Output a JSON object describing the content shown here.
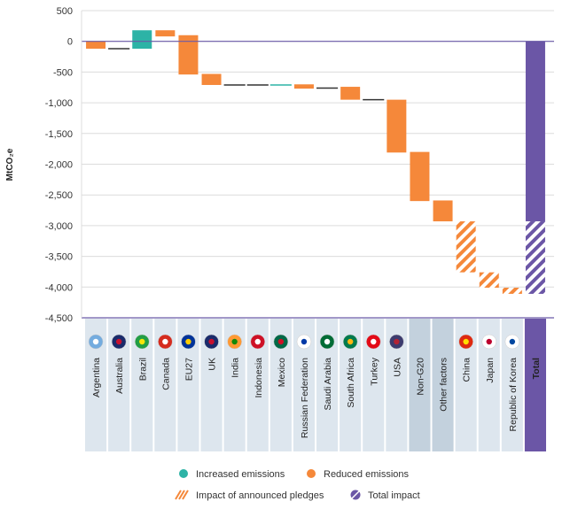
{
  "chart_data": {
    "type": "waterfall",
    "ylabel": "MtCO₂e",
    "ylim": [
      -4500,
      500
    ],
    "yticks": [
      500,
      0,
      -500,
      -1000,
      -1500,
      -2000,
      -2500,
      -3000,
      -3500,
      -4000,
      -4500
    ],
    "ytick_labels": [
      "500",
      "0",
      "-500",
      "-1,000",
      "-1,500",
      "-2,000",
      "-2,500",
      "-3,000",
      "-3,500",
      "-4,000",
      "-4,500"
    ],
    "grid": true,
    "legend_position": "bottom",
    "colors": {
      "increased": "#2db3a6",
      "reduced": "#f5883a",
      "pledges": "#f5883a",
      "total": "#6b56a6",
      "grid": "#dcdcdc",
      "axis": "#6a5aa8",
      "column": "#dde6ee",
      "column_dark": "#c3d1dd"
    },
    "categories": [
      {
        "name": "Argentina",
        "start": 0,
        "end": -120,
        "kind": "reduced"
      },
      {
        "name": "Australia",
        "start": -120,
        "end": -120,
        "kind": "line"
      },
      {
        "name": "Brazil",
        "start": -120,
        "end": 180,
        "kind": "increased"
      },
      {
        "name": "Canada",
        "start": 180,
        "end": 80,
        "kind": "reduced"
      },
      {
        "name": "EU27",
        "start": 100,
        "end": -540,
        "kind": "reduced"
      },
      {
        "name": "UK",
        "start": -530,
        "end": -710,
        "kind": "reduced"
      },
      {
        "name": "India",
        "start": -710,
        "end": -710,
        "kind": "line"
      },
      {
        "name": "Indonesia",
        "start": -710,
        "end": -710,
        "kind": "line"
      },
      {
        "name": "Mexico",
        "start": -710,
        "end": -710,
        "kind": "line-teal"
      },
      {
        "name": "Russian Federation",
        "start": -700,
        "end": -770,
        "kind": "reduced"
      },
      {
        "name": "Saudi Arabia",
        "start": -760,
        "end": -760,
        "kind": "line"
      },
      {
        "name": "South Africa",
        "start": -740,
        "end": -950,
        "kind": "reduced"
      },
      {
        "name": "Turkey",
        "start": -950,
        "end": -950,
        "kind": "line"
      },
      {
        "name": "USA",
        "start": -950,
        "end": -1810,
        "kind": "reduced"
      },
      {
        "name": "Non-G20",
        "start": -1800,
        "end": -2600,
        "kind": "reduced",
        "shade": true
      },
      {
        "name": "Other factors",
        "start": -2590,
        "end": -2930,
        "kind": "reduced",
        "shade": true
      },
      {
        "name": "China",
        "start": -2930,
        "end": -3760,
        "kind": "pledges"
      },
      {
        "name": "Japan",
        "start": -3760,
        "end": -4010,
        "kind": "pledges"
      },
      {
        "name": "Republic of Korea",
        "start": -4010,
        "end": -4110,
        "kind": "pledges"
      },
      {
        "name": "Total",
        "start": 0,
        "end": -4110,
        "kind": "total",
        "hatch_from": -2930,
        "bold": true
      }
    ],
    "legend": [
      {
        "label": "Increased emissions",
        "kind": "increased"
      },
      {
        "label": "Reduced emissions",
        "kind": "reduced"
      },
      {
        "label": "Impact of announced pledges",
        "kind": "pledges"
      },
      {
        "label": "Total impact",
        "kind": "total"
      }
    ]
  }
}
